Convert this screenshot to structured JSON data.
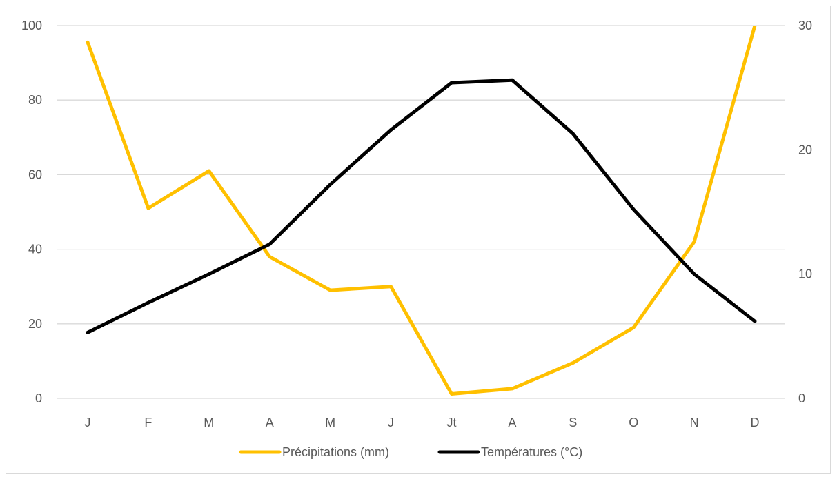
{
  "chart_data": {
    "type": "line",
    "title": "",
    "categories": [
      "J",
      "F",
      "M",
      "A",
      "M",
      "J",
      "Jt",
      "A",
      "S",
      "O",
      "N",
      "D"
    ],
    "series": [
      {
        "name": "Précipitations (mm)",
        "axis": "left",
        "color": "#FFC000",
        "values": [
          95.5,
          51,
          61,
          38,
          29,
          30,
          1.2,
          2.6,
          9.5,
          19,
          42,
          100
        ]
      },
      {
        "name": "Températures (°C)",
        "axis": "right",
        "color": "#000000",
        "values": [
          5.3,
          7.7,
          10,
          12.4,
          17.2,
          21.6,
          25.4,
          25.6,
          21.3,
          15.2,
          10,
          6.2
        ]
      }
    ],
    "y_left": {
      "min": 0,
      "max": 100,
      "ticks": [
        "0",
        "20",
        "40",
        "60",
        "80",
        "100"
      ]
    },
    "y_right": {
      "min": 0,
      "max": 30,
      "ticks": [
        "0",
        "10",
        "20",
        "30"
      ]
    },
    "grid": true,
    "legend_position": "bottom"
  }
}
